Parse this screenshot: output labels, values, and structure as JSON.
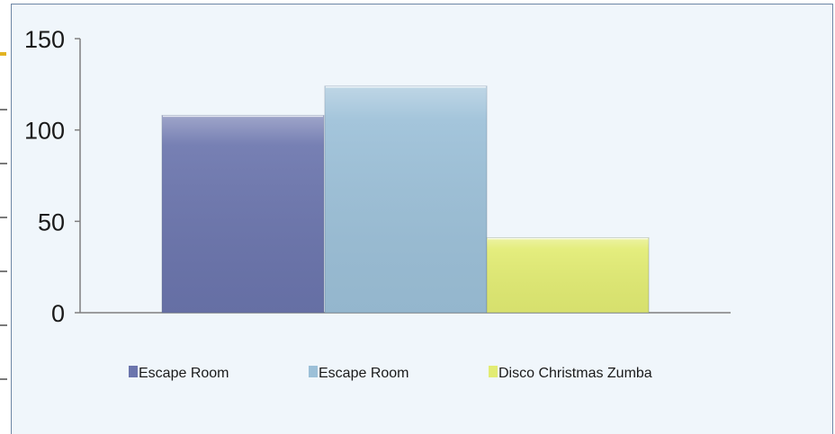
{
  "chart_data": {
    "type": "bar",
    "categories": [
      "Escape Room",
      "Escape Room",
      "Disco Christmas Zumba"
    ],
    "values": [
      108,
      124,
      41
    ],
    "title": "",
    "xlabel": "",
    "ylabel": "",
    "ylim": [
      0,
      150
    ],
    "yticks": [
      0,
      50,
      100,
      150
    ],
    "grid": false,
    "legend_position": "bottom",
    "colors": [
      "#6b75ad",
      "#9cc0d8",
      "#e2ec73"
    ],
    "legend": [
      "Escape Room",
      "Escape Room",
      "Disco Christmas Zumba"
    ]
  }
}
